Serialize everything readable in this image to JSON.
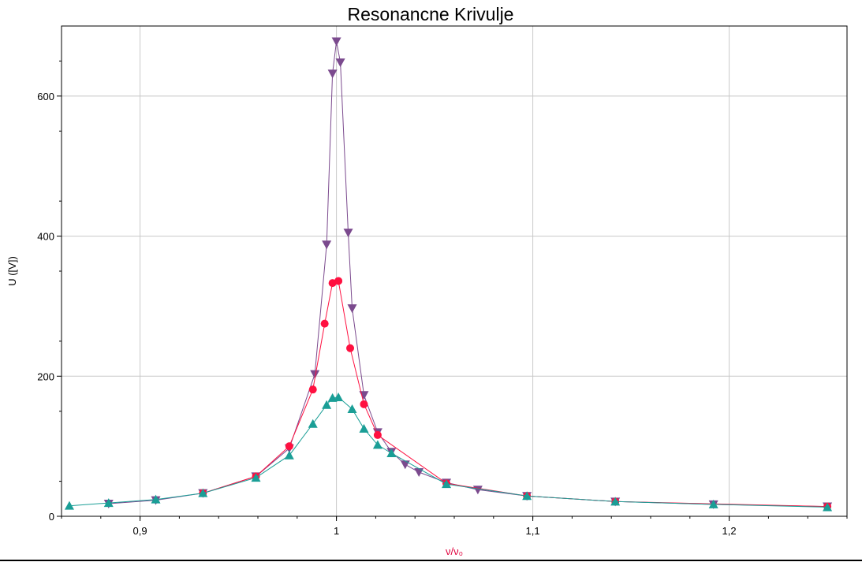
{
  "chart_data": {
    "type": "line",
    "title": "Resonancne Krivulje",
    "xlabel": "ν/ν₀",
    "ylabel": "U ([V])",
    "xlim": [
      0.86,
      1.26
    ],
    "ylim": [
      0,
      700
    ],
    "x_ticks": [
      0.9,
      1.0,
      1.1,
      1.2
    ],
    "x_tick_labels": [
      "0,9",
      "1",
      "1,1",
      "1,2"
    ],
    "y_ticks": [
      0,
      200,
      400,
      600
    ],
    "y_tick_labels": [
      "0",
      "200",
      "400",
      "600"
    ],
    "grid": true,
    "xlabel_color": "#e0003c",
    "series": [
      {
        "color": "#7b4a8e",
        "marker": "triangle-down",
        "points": [
          [
            0.884,
            18
          ],
          [
            0.908,
            23
          ],
          [
            0.932,
            33
          ],
          [
            0.959,
            57
          ],
          [
            0.976,
            97
          ],
          [
            0.989,
            203
          ],
          [
            0.995,
            388
          ],
          [
            0.998,
            632
          ],
          [
            1.0,
            678
          ],
          [
            1.002,
            648
          ],
          [
            1.006,
            405
          ],
          [
            1.008,
            297
          ],
          [
            1.014,
            173
          ],
          [
            1.021,
            120
          ],
          [
            1.028,
            92
          ],
          [
            1.035,
            74
          ],
          [
            1.042,
            63
          ],
          [
            1.056,
            48
          ],
          [
            1.072,
            38
          ],
          [
            1.097,
            29
          ],
          [
            1.142,
            21
          ],
          [
            1.192,
            17
          ],
          [
            1.25,
            14
          ]
        ]
      },
      {
        "color": "#ff1040",
        "marker": "circle",
        "points": [
          [
            0.932,
            33
          ],
          [
            0.959,
            57
          ],
          [
            0.976,
            100
          ],
          [
            0.988,
            181
          ],
          [
            0.994,
            275
          ],
          [
            0.998,
            333
          ],
          [
            1.001,
            336
          ],
          [
            1.007,
            240
          ],
          [
            1.014,
            160
          ],
          [
            1.021,
            116
          ],
          [
            1.056,
            47
          ],
          [
            1.097,
            29
          ],
          [
            1.142,
            21
          ],
          [
            1.25,
            14
          ]
        ]
      },
      {
        "color": "#1a9e96",
        "marker": "triangle-up",
        "points": [
          [
            0.864,
            15
          ],
          [
            0.884,
            19
          ],
          [
            0.908,
            24
          ],
          [
            0.932,
            33
          ],
          [
            0.959,
            55
          ],
          [
            0.976,
            87
          ],
          [
            0.988,
            132
          ],
          [
            0.995,
            159
          ],
          [
            0.998,
            169
          ],
          [
            1.001,
            170
          ],
          [
            1.008,
            153
          ],
          [
            1.014,
            125
          ],
          [
            1.021,
            102
          ],
          [
            1.028,
            90
          ],
          [
            1.056,
            46
          ],
          [
            1.097,
            29
          ],
          [
            1.142,
            21
          ],
          [
            1.192,
            17
          ],
          [
            1.25,
            13
          ]
        ]
      }
    ]
  }
}
